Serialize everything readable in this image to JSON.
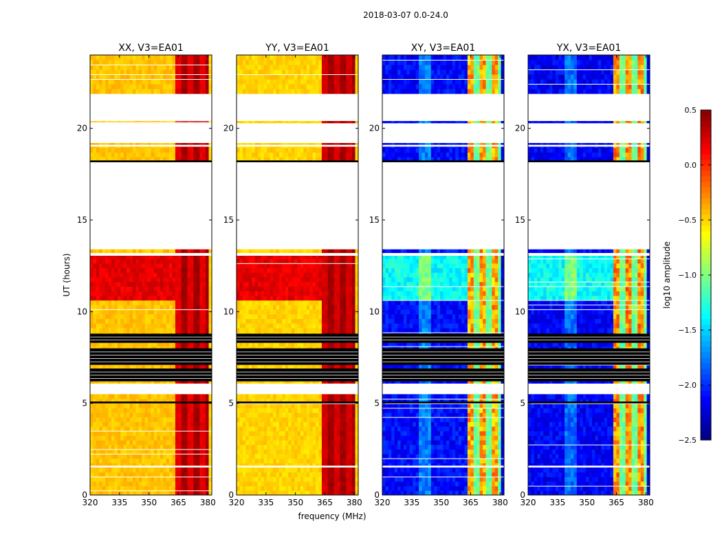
{
  "suptitle": "2018-03-07 0.0-24.0",
  "colors": {
    "jet_stops": [
      "#00007f",
      "#0000ff",
      "#007fff",
      "#00ffff",
      "#7fff7f",
      "#ffff00",
      "#ff7f00",
      "#ff0000",
      "#7f0000"
    ],
    "axis": "#000000",
    "flag_band": "#000000",
    "gap": "#ffffff"
  },
  "chart_data": {
    "type": "heatmap",
    "xlabel": "frequency (MHz)",
    "ylabel": "UT (hours)",
    "xlim": [
      320,
      382
    ],
    "ylim": [
      0,
      24
    ],
    "xticks": [
      320,
      335,
      350,
      365,
      380
    ],
    "yticks": [
      0,
      5,
      10,
      15,
      20
    ],
    "colorbar": {
      "label": "log10 amplitude",
      "range": [
        -2.5,
        0.5
      ],
      "ticks": [
        "0.5",
        "0.0",
        "−0.5",
        "−1.0",
        "−1.5",
        "−2.0",
        "−2.5"
      ]
    },
    "time_blocks": [
      [
        0,
        5.5
      ],
      [
        6.1,
        13.4
      ],
      [
        18.2,
        19.2
      ],
      [
        20.3,
        20.4
      ],
      [
        21.9,
        24
      ]
    ],
    "black_flag_bands": [
      [
        5.0,
        5.1
      ],
      [
        6.2,
        6.9
      ],
      [
        7.1,
        8.0
      ],
      [
        8.3,
        8.8
      ],
      [
        18.15,
        18.25
      ]
    ],
    "white_gaps": [
      [
        1.5,
        1.6
      ],
      [
        5.6,
        6.0
      ],
      [
        13.05,
        13.2
      ],
      [
        19.0,
        19.1
      ]
    ],
    "hot_band_mhz": [
      363,
      380
    ],
    "panels": [
      {
        "title": "XX, V3=EA01",
        "kind": "auto",
        "base_level": -0.45,
        "hot_level": 0.15,
        "hot_level_mid": 0.35
      },
      {
        "title": "YY, V3=EA01",
        "kind": "auto",
        "base_level": -0.5,
        "hot_level": 0.2,
        "hot_level_mid": 0.35
      },
      {
        "title": "XY, V3=EA01",
        "kind": "cross",
        "base_level": -2.1,
        "hot_level": -0.6,
        "hot_level_mid": -1.2
      },
      {
        "title": "YX, V3=EA01",
        "kind": "cross",
        "base_level": -2.15,
        "hot_level": -0.55,
        "hot_level_mid": -1.2
      }
    ]
  }
}
